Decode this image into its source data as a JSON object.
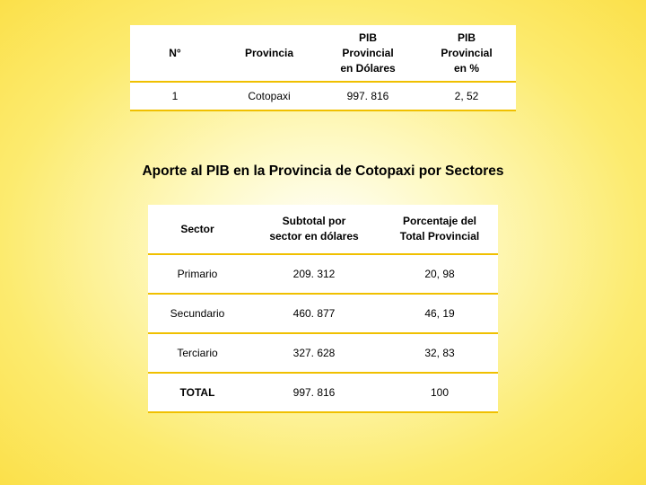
{
  "table1": {
    "columns": [
      "N°",
      "Provincia",
      "PIB\nProvincial\nen Dólares",
      "PIB\nProvincial\nen %"
    ],
    "rows": [
      [
        "1",
        "Cotopaxi",
        "997. 816",
        "2, 52"
      ]
    ]
  },
  "heading": "Aporte al PIB en la Provincia de  Cotopaxi por Sectores",
  "table2": {
    "columns": [
      "Sector",
      "Subtotal por\nsector en dólares",
      "Porcentaje del\nTotal Provincial"
    ],
    "rows": [
      [
        "Primario",
        "209. 312",
        "20, 98"
      ],
      [
        "Secundario",
        "460. 877",
        "46, 19"
      ],
      [
        "Terciario",
        "327. 628",
        "32, 83"
      ],
      [
        "TOTAL",
        "997. 816",
        "100"
      ]
    ]
  },
  "style": {
    "background_gradient": [
      "#ffffff",
      "#fef9c3",
      "#fceb6f",
      "#fbe04a"
    ],
    "border_color": "#f0c000",
    "cell_bg": "#ffffff",
    "text_color": "#000000",
    "font_family": "Arial",
    "h_fontsize": 15.5,
    "cell_fontsize": 12,
    "table1_width": 430,
    "table2_width": 390
  }
}
